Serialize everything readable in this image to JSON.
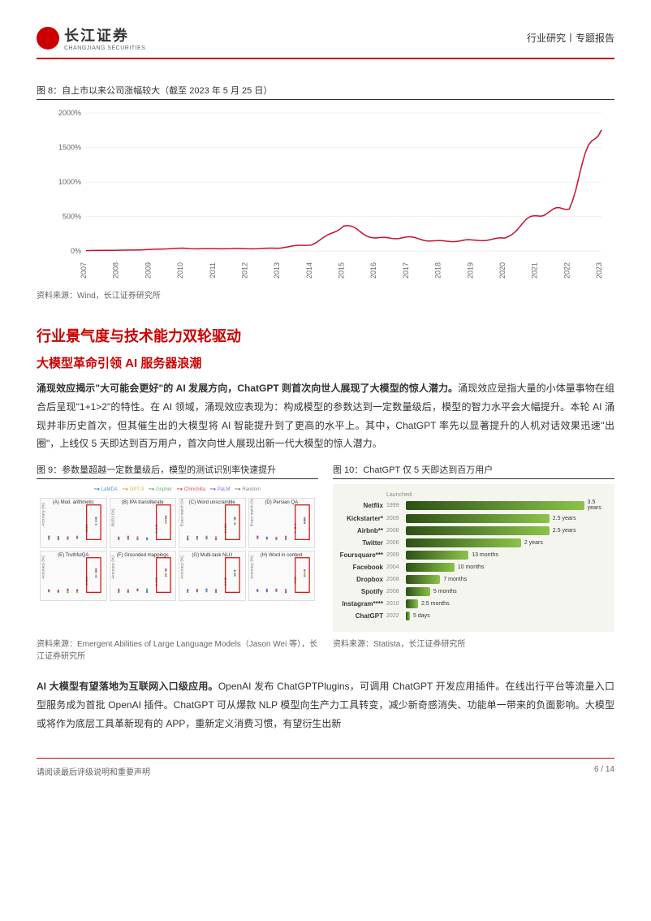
{
  "header": {
    "company_cn": "长江证券",
    "company_en": "CHANGJIANG SECURITIES",
    "right_text": "行业研究丨专题报告"
  },
  "chart8": {
    "title": "图 8：自上市以来公司涨幅较大（截至 2023 年 5 月 25 日）",
    "source": "资料来源：Wind，长江证券研究所",
    "type": "line",
    "color": "#c8102e",
    "ylim": [
      0,
      2000
    ],
    "ytick_step": 500,
    "ylabels": [
      "0%",
      "500%",
      "1000%",
      "1500%",
      "2000%"
    ],
    "xlabels": [
      "2007",
      "2008",
      "2009",
      "2010",
      "2011",
      "2012",
      "2013",
      "2014",
      "2015",
      "2016",
      "2017",
      "2018",
      "2019",
      "2020",
      "2021",
      "2022",
      "2023"
    ],
    "values": [
      5,
      10,
      20,
      40,
      30,
      35,
      40,
      100,
      350,
      200,
      180,
      150,
      140,
      200,
      500,
      700,
      1800
    ],
    "background_color": "#ffffff",
    "grid_color": "#e0e0e0",
    "line_width": 1.5
  },
  "section": {
    "h1": "行业景气度与技术能力双轮驱动",
    "h2": "大模型革命引领 AI 服务器浪潮",
    "p1_bold": "涌现效应揭示\"大可能会更好\"的 AI 发展方向，ChatGPT 则首次向世人展现了大模型的惊人潜力。",
    "p1": "涌现效应是指大量的小体量事物在组合后呈现\"1+1>2\"的特性。在 AI 领域，涌现效应表现为：构成模型的参数达到一定数量级后，模型的智力水平会大幅提升。本轮 AI 涌现并非历史首次，但其催生出的大模型将 AI 智能提升到了更高的水平上。其中，ChatGPT 率先以显著提升的人机对话效果迅速\"出圈\"，上线仅 5 天即达到百万用户，首次向世人展现出新一代大模型的惊人潜力。",
    "p2_bold": "AI 大模型有望落地为互联网入口级应用。",
    "p2": "OpenAI 发布 ChatGPTPlugins，可调用 ChatGPT 开发应用插件。在线出行平台等流量入口型服务成为首批 OpenAI 插件。ChatGPT 可从爆款 NLP 模型向生产力工具转变，减少新奇感消失、功能单一带来的负面影响。大模型或将作为底层工具革新现有的 APP，重新定义消费习惯，有望衍生出新"
  },
  "chart9": {
    "title": "图 9：参数量超越一定数量级后，模型的测试识别率快速提升",
    "source": "资料来源：Emergent Abilities of Large Language Models（Jason Wei 等），长江证券研究所",
    "legend": [
      "LaMDA",
      "GPT-3",
      "Gopher",
      "Chinchilla",
      "PaLM",
      "Random"
    ],
    "legend_colors": [
      "#4a90d9",
      "#e8a33d",
      "#5cb85c",
      "#d9534f",
      "#7b68ee",
      "#888888"
    ],
    "panels": [
      {
        "label": "(A) Mod. arithmetic",
        "ylabel": "Accuracy (%)"
      },
      {
        "label": "(B) IPA transliterate",
        "ylabel": "BLEU (%)"
      },
      {
        "label": "(C) Word unscramble",
        "ylabel": "Exact match (%)"
      },
      {
        "label": "(D) Persian QA",
        "ylabel": "Exact match (%)"
      },
      {
        "label": "(E) TruthfulQA",
        "ylabel": "Accuracy (%)"
      },
      {
        "label": "(F) Grounded mappings",
        "ylabel": "Accuracy (%)"
      },
      {
        "label": "(G) Multi-task NLU",
        "ylabel": "Accuracy (%)"
      },
      {
        "label": "(H) Word in context",
        "ylabel": "Accuracy (%)"
      }
    ]
  },
  "chart10": {
    "title": "图 10：ChatGPT 仅 5 天即达到百万用户",
    "source": "资料来源：Statista，长江证券研究所",
    "launched_label": "Launched:",
    "background_color": "#f5f5f0",
    "rows": [
      {
        "label": "Netflix",
        "year": "1999",
        "value": "3.5 years",
        "width": 100,
        "color1": "#2d5016",
        "color2": "#8bc34a"
      },
      {
        "label": "Kickstarter*",
        "year": "2009",
        "value": "2.5 years",
        "width": 71,
        "color1": "#2d5016",
        "color2": "#8bc34a"
      },
      {
        "label": "Airbnb**",
        "year": "2008",
        "value": "2.5 years",
        "width": 71,
        "color1": "#2d5016",
        "color2": "#8bc34a"
      },
      {
        "label": "Twitter",
        "year": "2006",
        "value": "2 years",
        "width": 57,
        "color1": "#2d5016",
        "color2": "#8bc34a"
      },
      {
        "label": "Foursquare***",
        "year": "2009",
        "value": "13 months",
        "width": 31,
        "color1": "#2d5016",
        "color2": "#8bc34a"
      },
      {
        "label": "Facebook",
        "year": "2004",
        "value": "10 months",
        "width": 24,
        "color1": "#2d5016",
        "color2": "#8bc34a"
      },
      {
        "label": "Dropbox",
        "year": "2008",
        "value": "7 months",
        "width": 17,
        "color1": "#2d5016",
        "color2": "#8bc34a"
      },
      {
        "label": "Spotify",
        "year": "2008",
        "value": "5 months",
        "width": 12,
        "color1": "#2d5016",
        "color2": "#8bc34a"
      },
      {
        "label": "Instagram****",
        "year": "2010",
        "value": "2.5 months",
        "width": 6,
        "color1": "#2d5016",
        "color2": "#8bc34a"
      },
      {
        "label": "ChatGPT",
        "year": "2022",
        "value": "5 days",
        "width": 2,
        "color1": "#2d5016",
        "color2": "#8bc34a"
      }
    ]
  },
  "footer": {
    "left": "请阅读最后评级说明和重要声明",
    "right": "6 / 14"
  }
}
